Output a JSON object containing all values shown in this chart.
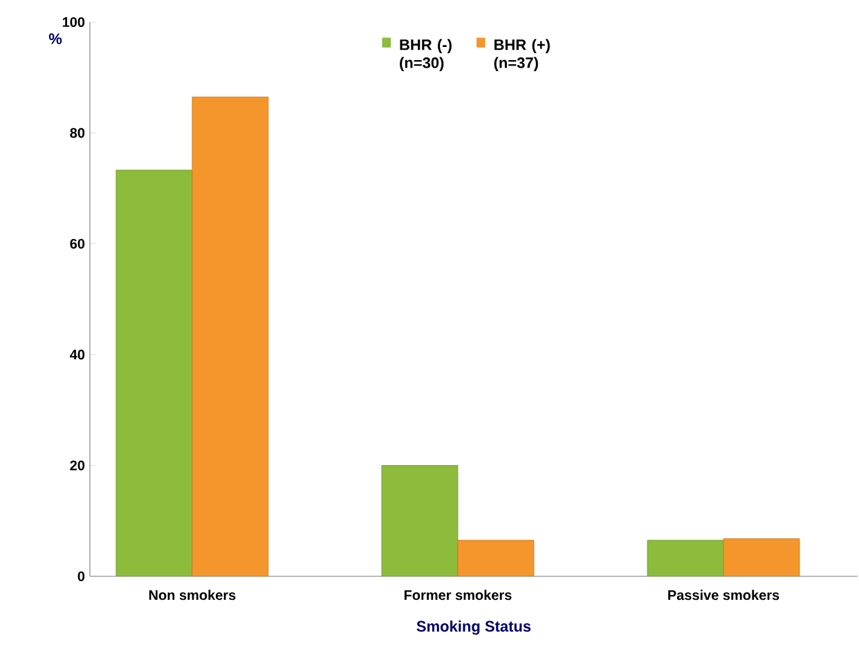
{
  "chart_data": {
    "type": "bar",
    "xlabel": "Smoking Status",
    "ylabel": "%",
    "categories": [
      "Non smokers",
      "Former smokers",
      "Passive smokers"
    ],
    "series": [
      {
        "name": "BHR (-) (n=30)",
        "color": "#8dbb3c",
        "values": [
          73.3,
          20,
          6.5
        ]
      },
      {
        "name": "BHR (+) (n=37)",
        "color": "#f5962c",
        "values": [
          86.5,
          6.5,
          6.8
        ]
      }
    ],
    "ylim": [
      0,
      100
    ],
    "yticks": [
      0,
      20,
      40,
      60,
      80,
      100
    ],
    "grid": false,
    "legend": "top"
  }
}
